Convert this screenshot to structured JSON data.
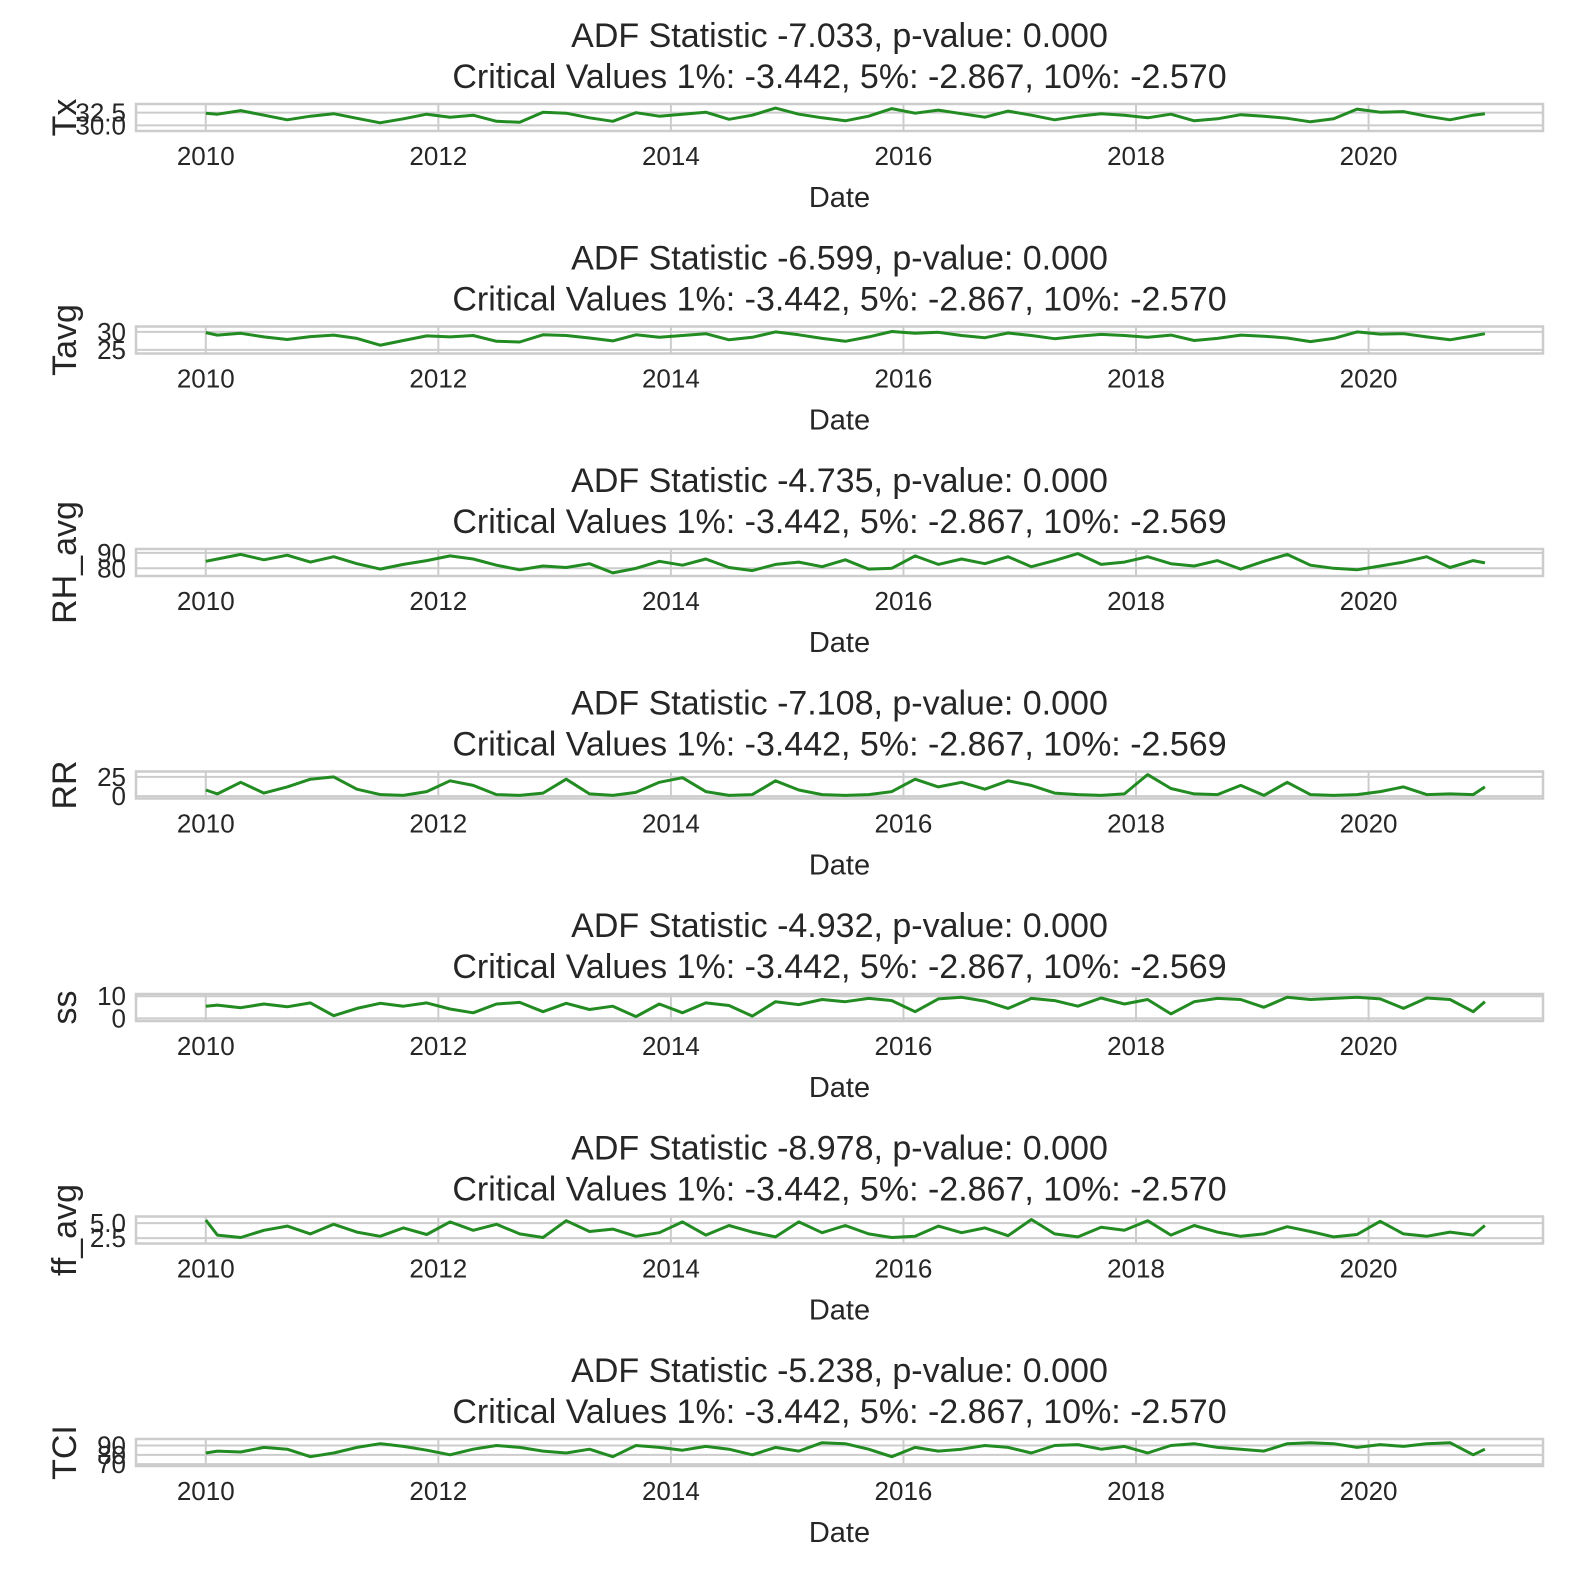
{
  "style": {
    "line_color": "#228b22",
    "grid_color": "#cccccc",
    "text_color": "#262626",
    "background": "#ffffff"
  },
  "chart_data": [
    {
      "type": "line",
      "title_line1": "ADF Statistic -7.033, p-value: 0.000",
      "title_line2": "Critical Values 1%: -3.442, 5%: -2.867, 10%: -2.570",
      "ylabel": "Tx",
      "xlabel": "Date",
      "x_ticks": [
        "2010",
        "2012",
        "2014",
        "2016",
        "2018",
        "2020"
      ],
      "y_ticks": [
        "30.0",
        "32.5"
      ],
      "xlim": [
        2009.4,
        2021.5
      ],
      "ylim": [
        28.9,
        34.2
      ],
      "x": [
        2010.0,
        2010.1,
        2010.3,
        2010.5,
        2010.7,
        2010.9,
        2011.1,
        2011.3,
        2011.5,
        2011.7,
        2011.9,
        2012.1,
        2012.3,
        2012.5,
        2012.7,
        2012.9,
        2013.1,
        2013.3,
        2013.5,
        2013.7,
        2013.9,
        2014.1,
        2014.3,
        2014.5,
        2014.7,
        2014.9,
        2015.1,
        2015.3,
        2015.5,
        2015.7,
        2015.9,
        2016.1,
        2016.3,
        2016.5,
        2016.7,
        2016.9,
        2017.1,
        2017.3,
        2017.5,
        2017.7,
        2017.9,
        2018.1,
        2018.3,
        2018.5,
        2018.7,
        2018.9,
        2019.1,
        2019.3,
        2019.5,
        2019.7,
        2019.9,
        2020.1,
        2020.3,
        2020.5,
        2020.7,
        2020.9,
        2021.0
      ],
      "y": [
        32.4,
        32.2,
        32.9,
        32.0,
        31.1,
        31.8,
        32.3,
        31.4,
        30.5,
        31.3,
        32.2,
        31.6,
        32.0,
        30.8,
        30.6,
        32.6,
        32.4,
        31.5,
        30.8,
        32.5,
        31.8,
        32.2,
        32.6,
        31.2,
        32.0,
        33.4,
        32.2,
        31.5,
        30.9,
        31.8,
        33.3,
        32.4,
        33.0,
        32.3,
        31.6,
        32.8,
        32.0,
        31.1,
        31.8,
        32.3,
        32.0,
        31.5,
        32.2,
        30.9,
        31.3,
        32.1,
        31.8,
        31.4,
        30.7,
        31.3,
        33.2,
        32.6,
        32.7,
        31.8,
        31.1,
        32.0,
        32.3
      ]
    },
    {
      "type": "line",
      "title_line1": "ADF Statistic -6.599, p-value: 0.000",
      "title_line2": "Critical Values 1%: -3.442, 5%: -2.867, 10%: -2.570",
      "ylabel": "Tavg",
      "xlabel": "Date",
      "x_ticks": [
        "2010",
        "2012",
        "2014",
        "2016",
        "2018",
        "2020"
      ],
      "y_ticks": [
        "25",
        "30"
      ],
      "xlim": [
        2009.4,
        2021.5
      ],
      "ylim": [
        24.0,
        31.5
      ],
      "x": [
        2010.0,
        2010.1,
        2010.3,
        2010.5,
        2010.7,
        2010.9,
        2011.1,
        2011.3,
        2011.5,
        2011.7,
        2011.9,
        2012.1,
        2012.3,
        2012.5,
        2012.7,
        2012.9,
        2013.1,
        2013.3,
        2013.5,
        2013.7,
        2013.9,
        2014.1,
        2014.3,
        2014.5,
        2014.7,
        2014.9,
        2015.1,
        2015.3,
        2015.5,
        2015.7,
        2015.9,
        2016.1,
        2016.3,
        2016.5,
        2016.7,
        2016.9,
        2017.1,
        2017.3,
        2017.5,
        2017.7,
        2017.9,
        2018.1,
        2018.3,
        2018.5,
        2018.7,
        2018.9,
        2019.1,
        2019.3,
        2019.5,
        2019.7,
        2019.9,
        2020.1,
        2020.3,
        2020.5,
        2020.7,
        2020.9,
        2021.0
      ],
      "y": [
        29.8,
        29.1,
        29.6,
        28.6,
        27.9,
        28.7,
        29.1,
        28.2,
        26.3,
        27.6,
        28.9,
        28.6,
        29.0,
        27.4,
        27.2,
        29.2,
        29.0,
        28.3,
        27.5,
        29.2,
        28.5,
        29.0,
        29.5,
        27.8,
        28.5,
        30.0,
        29.2,
        28.2,
        27.4,
        28.6,
        30.1,
        29.6,
        29.9,
        29.0,
        28.4,
        29.7,
        29.0,
        28.1,
        28.8,
        29.3,
        29.0,
        28.5,
        29.1,
        27.6,
        28.2,
        29.1,
        28.8,
        28.3,
        27.3,
        28.2,
        30.0,
        29.4,
        29.5,
        28.6,
        27.8,
        28.9,
        29.5
      ]
    },
    {
      "type": "line",
      "title_line1": "ADF Statistic -4.735, p-value: 0.000",
      "title_line2": "Critical Values 1%: -3.442, 5%: -2.867, 10%: -2.569",
      "ylabel": "RH_avg",
      "xlabel": "Date",
      "x_ticks": [
        "2010",
        "2012",
        "2014",
        "2016",
        "2018",
        "2020"
      ],
      "y_ticks": [
        "80",
        "90"
      ],
      "xlim": [
        2009.4,
        2021.5
      ],
      "ylim": [
        75.0,
        92.5
      ],
      "x": [
        2010.0,
        2010.1,
        2010.3,
        2010.5,
        2010.7,
        2010.9,
        2011.1,
        2011.3,
        2011.5,
        2011.7,
        2011.9,
        2012.1,
        2012.3,
        2012.5,
        2012.7,
        2012.9,
        2013.1,
        2013.3,
        2013.5,
        2013.7,
        2013.9,
        2014.1,
        2014.3,
        2014.5,
        2014.7,
        2014.9,
        2015.1,
        2015.3,
        2015.5,
        2015.7,
        2015.9,
        2016.1,
        2016.3,
        2016.5,
        2016.7,
        2016.9,
        2017.1,
        2017.3,
        2017.5,
        2017.7,
        2017.9,
        2018.1,
        2018.3,
        2018.5,
        2018.7,
        2018.9,
        2019.1,
        2019.3,
        2019.5,
        2019.7,
        2019.9,
        2020.1,
        2020.3,
        2020.5,
        2020.7,
        2020.9,
        2021.0
      ],
      "y": [
        84.5,
        86.0,
        89.0,
        85.5,
        88.5,
        84.0,
        87.5,
        83.0,
        79.5,
        82.5,
        85.0,
        88.0,
        86.0,
        82.0,
        79.0,
        81.5,
        80.5,
        83.0,
        77.0,
        80.0,
        84.5,
        82.0,
        86.0,
        80.5,
        78.5,
        82.5,
        84.0,
        81.0,
        85.5,
        79.5,
        80.0,
        88.0,
        82.5,
        86.0,
        83.0,
        87.5,
        81.0,
        85.0,
        89.5,
        82.5,
        84.0,
        87.5,
        83.0,
        81.5,
        85.0,
        79.5,
        84.5,
        89.0,
        82.0,
        80.0,
        79.0,
        81.5,
        84.0,
        87.5,
        80.5,
        85.0,
        83.5
      ]
    },
    {
      "type": "line",
      "title_line1": "ADF Statistic -7.108, p-value: 0.000",
      "title_line2": "Critical Values 1%: -3.442, 5%: -2.867, 10%: -2.569",
      "ylabel": "RR",
      "xlabel": "Date",
      "x_ticks": [
        "2010",
        "2012",
        "2014",
        "2016",
        "2018",
        "2020"
      ],
      "y_ticks": [
        "0",
        "25"
      ],
      "xlim": [
        2009.4,
        2021.5
      ],
      "ylim": [
        -3.0,
        32.0
      ],
      "x": [
        2010.0,
        2010.1,
        2010.3,
        2010.5,
        2010.7,
        2010.9,
        2011.1,
        2011.3,
        2011.5,
        2011.7,
        2011.9,
        2012.1,
        2012.3,
        2012.5,
        2012.7,
        2012.9,
        2013.1,
        2013.3,
        2013.5,
        2013.7,
        2013.9,
        2014.1,
        2014.3,
        2014.5,
        2014.7,
        2014.9,
        2015.1,
        2015.3,
        2015.5,
        2015.7,
        2015.9,
        2016.1,
        2016.3,
        2016.5,
        2016.7,
        2016.9,
        2017.1,
        2017.3,
        2017.5,
        2017.7,
        2017.9,
        2018.1,
        2018.3,
        2018.5,
        2018.7,
        2018.9,
        2019.1,
        2019.3,
        2019.5,
        2019.7,
        2019.9,
        2020.1,
        2020.3,
        2020.5,
        2020.7,
        2020.9,
        2021.0
      ],
      "y": [
        8,
        3,
        18,
        4,
        12,
        22,
        25,
        9,
        2,
        1,
        6,
        20,
        14,
        2,
        1,
        4,
        22,
        3,
        1,
        5,
        18,
        24,
        6,
        1,
        2,
        20,
        8,
        2,
        1,
        2,
        6,
        22,
        12,
        18,
        9,
        20,
        14,
        4,
        2,
        1,
        3,
        28,
        10,
        3,
        2,
        14,
        1,
        18,
        2,
        1,
        2,
        6,
        12,
        2,
        3,
        2,
        12
      ]
    },
    {
      "type": "line",
      "title_line1": "ADF Statistic -4.932, p-value: 0.000",
      "title_line2": "Critical Values 1%: -3.442, 5%: -2.867, 10%: -2.569",
      "ylabel": "ss",
      "xlabel": "Date",
      "x_ticks": [
        "2010",
        "2012",
        "2014",
        "2016",
        "2018",
        "2020"
      ],
      "y_ticks": [
        "0",
        "10"
      ],
      "xlim": [
        2009.4,
        2021.5
      ],
      "ylim": [
        -1.2,
        11.0
      ],
      "x": [
        2010.0,
        2010.1,
        2010.3,
        2010.5,
        2010.7,
        2010.9,
        2011.1,
        2011.3,
        2011.5,
        2011.7,
        2011.9,
        2012.1,
        2012.3,
        2012.5,
        2012.7,
        2012.9,
        2013.1,
        2013.3,
        2013.5,
        2013.7,
        2013.9,
        2014.1,
        2014.3,
        2014.5,
        2014.7,
        2014.9,
        2015.1,
        2015.3,
        2015.5,
        2015.7,
        2015.9,
        2016.1,
        2016.3,
        2016.5,
        2016.7,
        2016.9,
        2017.1,
        2017.3,
        2017.5,
        2017.7,
        2017.9,
        2018.1,
        2018.3,
        2018.5,
        2018.7,
        2018.9,
        2019.1,
        2019.3,
        2019.5,
        2019.7,
        2019.9,
        2020.1,
        2020.3,
        2020.5,
        2020.7,
        2020.9,
        2021.0
      ],
      "y": [
        5.5,
        6.0,
        4.8,
        6.5,
        5.2,
        7.0,
        1.2,
        4.5,
        6.8,
        5.5,
        7.0,
        4.2,
        2.5,
        6.5,
        7.2,
        3.0,
        6.8,
        4.0,
        5.5,
        0.8,
        6.5,
        2.5,
        7.0,
        5.8,
        1.0,
        7.5,
        6.2,
        8.5,
        7.5,
        9.0,
        8.0,
        3.0,
        8.8,
        9.5,
        7.8,
        4.5,
        9.0,
        8.0,
        5.5,
        9.2,
        6.5,
        8.5,
        2.0,
        7.5,
        9.0,
        8.5,
        5.0,
        9.5,
        8.5,
        9.0,
        9.5,
        8.8,
        4.5,
        9.2,
        8.5,
        3.0,
        7.5
      ]
    },
    {
      "type": "line",
      "title_line1": "ADF Statistic -8.978, p-value: 0.000",
      "title_line2": "Critical Values 1%: -3.442, 5%: -2.867, 10%: -2.570",
      "ylabel": "ff_avg",
      "xlabel": "Date",
      "x_ticks": [
        "2010",
        "2012",
        "2014",
        "2016",
        "2018",
        "2020"
      ],
      "y_ticks": [
        "2.5",
        "5.0"
      ],
      "xlim": [
        2009.4,
        2021.5
      ],
      "ylim": [
        1.6,
        6.1
      ],
      "x": [
        2010.0,
        2010.1,
        2010.3,
        2010.5,
        2010.7,
        2010.9,
        2011.1,
        2011.3,
        2011.5,
        2011.7,
        2011.9,
        2012.1,
        2012.3,
        2012.5,
        2012.7,
        2012.9,
        2013.1,
        2013.3,
        2013.5,
        2013.7,
        2013.9,
        2014.1,
        2014.3,
        2014.5,
        2014.7,
        2014.9,
        2015.1,
        2015.3,
        2015.5,
        2015.7,
        2015.9,
        2016.1,
        2016.3,
        2016.5,
        2016.7,
        2016.9,
        2017.1,
        2017.3,
        2017.5,
        2017.7,
        2017.9,
        2018.1,
        2018.3,
        2018.5,
        2018.7,
        2018.9,
        2019.1,
        2019.3,
        2019.5,
        2019.7,
        2019.9,
        2020.1,
        2020.3,
        2020.5,
        2020.7,
        2020.9,
        2021.0
      ],
      "y": [
        5.5,
        3.0,
        2.6,
        3.8,
        4.5,
        3.2,
        4.8,
        3.5,
        2.8,
        4.2,
        3.1,
        5.2,
        3.8,
        4.8,
        3.2,
        2.6,
        5.4,
        3.6,
        4.0,
        2.8,
        3.4,
        5.2,
        3.0,
        4.6,
        3.5,
        2.7,
        5.2,
        3.4,
        4.6,
        3.2,
        2.6,
        2.8,
        4.5,
        3.4,
        4.2,
        2.9,
        5.6,
        3.2,
        2.7,
        4.3,
        3.8,
        5.4,
        3.0,
        4.6,
        3.5,
        2.8,
        3.2,
        4.4,
        3.6,
        2.7,
        3.1,
        5.3,
        3.2,
        2.8,
        3.5,
        3.0,
        4.6
      ]
    },
    {
      "type": "line",
      "title_line1": "ADF Statistic -5.238, p-value: 0.000",
      "title_line2": "Critical Values 1%: -3.442, 5%: -2.867, 10%: -2.570",
      "ylabel": "TCI",
      "xlabel": "Date",
      "x_ticks": [
        "2010",
        "2012",
        "2014",
        "2016",
        "2018",
        "2020"
      ],
      "y_ticks": [
        "70",
        "80",
        "90"
      ],
      "xlim": [
        2009.4,
        2021.5
      ],
      "ylim": [
        68.0,
        97.0
      ],
      "x": [
        2010.0,
        2010.1,
        2010.3,
        2010.5,
        2010.7,
        2010.9,
        2011.1,
        2011.3,
        2011.5,
        2011.7,
        2011.9,
        2012.1,
        2012.3,
        2012.5,
        2012.7,
        2012.9,
        2013.1,
        2013.3,
        2013.5,
        2013.7,
        2013.9,
        2014.1,
        2014.3,
        2014.5,
        2014.7,
        2014.9,
        2015.1,
        2015.3,
        2015.5,
        2015.7,
        2015.9,
        2016.1,
        2016.3,
        2016.5,
        2016.7,
        2016.9,
        2017.1,
        2017.3,
        2017.5,
        2017.7,
        2017.9,
        2018.1,
        2018.3,
        2018.5,
        2018.7,
        2018.9,
        2019.1,
        2019.3,
        2019.5,
        2019.7,
        2019.9,
        2020.1,
        2020.3,
        2020.5,
        2020.7,
        2020.9,
        2021.0
      ],
      "y": [
        82,
        84,
        83,
        88,
        86,
        78,
        82,
        88,
        92,
        89,
        85,
        80,
        86,
        90,
        88,
        84,
        82,
        86,
        78,
        90,
        88,
        85,
        89,
        86,
        80,
        88,
        84,
        93,
        92,
        86,
        78,
        88,
        84,
        86,
        90,
        88,
        82,
        90,
        91,
        86,
        89,
        82,
        90,
        92,
        88,
        86,
        84,
        92,
        93,
        92,
        88,
        91,
        89,
        92,
        93,
        80,
        86
      ]
    }
  ]
}
